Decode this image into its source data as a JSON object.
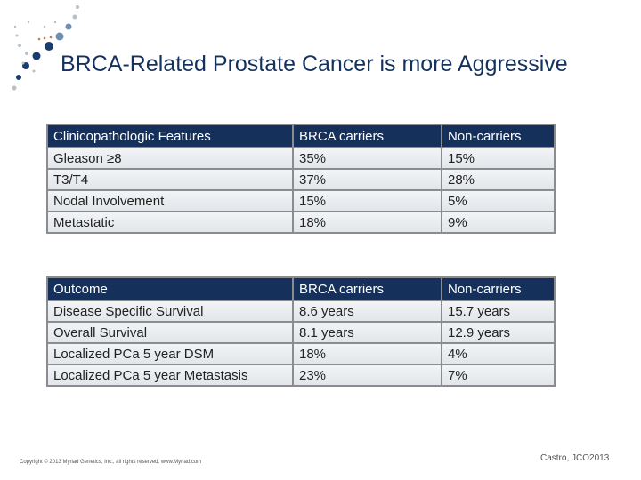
{
  "title": "BRCA-Related Prostate Cancer is more Aggressive",
  "table1": {
    "headers": [
      "Clinicopathologic Features",
      "BRCA carriers",
      "Non-carriers"
    ],
    "rows": [
      [
        "Gleason ≥8",
        "35%",
        "15%"
      ],
      [
        "T3/T4",
        "37%",
        "28%"
      ],
      [
        "Nodal Involvement",
        "15%",
        "5%"
      ],
      [
        "Metastatic",
        "18%",
        "9%"
      ]
    ]
  },
  "table2": {
    "headers": [
      "Outcome",
      "BRCA carriers",
      "Non-carriers"
    ],
    "rows": [
      [
        "Disease Specific Survival",
        "8.6 years",
        "15.7 years"
      ],
      [
        "Overall Survival",
        "8.1 years",
        "12.9 years"
      ],
      [
        "Localized PCa 5 year DSM",
        "18%",
        "4%"
      ],
      [
        "Localized PCa 5 year Metastasis",
        "23%",
        "7%"
      ]
    ]
  },
  "footer": {
    "copyright": "Copyright © 2013 Myriad Genetics, Inc., all rights reserved. www.Myriad.com",
    "citation": "Castro, JCO2013"
  },
  "colors": {
    "header": "#15305b",
    "title": "#15325e"
  }
}
